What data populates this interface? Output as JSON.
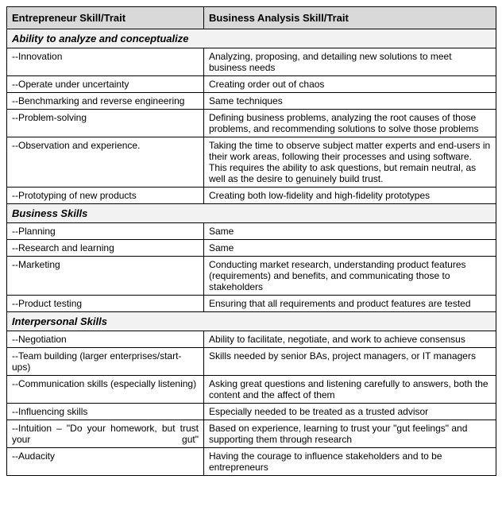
{
  "headers": {
    "col1": "Entrepreneur Skill/Trait",
    "col2": "Business Analysis Skill/Trait"
  },
  "sections": [
    {
      "title": "Ability to analyze and conceptualize",
      "rows": [
        {
          "left": "--Innovation",
          "right": "Analyzing, proposing, and detailing new solutions to meet business needs"
        },
        {
          "left": "--Operate under uncertainty",
          "right": "Creating order out of chaos"
        },
        {
          "left": "--Benchmarking and reverse engineering",
          "right": "Same techniques"
        },
        {
          "left": "--Problem-solving",
          "right": "Defining business problems, analyzing the root causes of those problems, and recommending solutions to solve those problems"
        },
        {
          "left": "--Observation and experience.",
          "right": "Taking the time to observe subject matter experts and end-users in their work areas, following their processes and using software. This requires the ability to ask questions, but remain neutral, as well as the desire to genuinely build trust."
        },
        {
          "left": "--Prototyping of new products",
          "right": "Creating both low-fidelity and high-fidelity prototypes"
        }
      ]
    },
    {
      "title": "Business Skills",
      "rows": [
        {
          "left": "--Planning",
          "right": "Same"
        },
        {
          "left": "--Research and learning",
          "right": "Same"
        },
        {
          "left": "--Marketing",
          "right": "Conducting market research, understanding product features (requirements) and benefits, and communicating those to stakeholders"
        },
        {
          "left": "--Product testing",
          "right": "Ensuring that all requirements and product features are tested"
        }
      ]
    },
    {
      "title": "Interpersonal Skills",
      "rows": [
        {
          "left": "--Negotiation",
          "right": "Ability to facilitate, negotiate, and work to achieve consensus"
        },
        {
          "left": "--Team building (larger enterprises/start-ups)",
          "right": "Skills needed by senior BAs, project managers, or IT managers"
        },
        {
          "left": "--Communication skills (especially listening)",
          "right": "Asking great questions and listening carefully to answers, both the content and the affect of them"
        },
        {
          "left": "--Influencing skills",
          "right": "Especially needed to be treated as a trusted advisor"
        },
        {
          "left": "--Intuition – \"Do your homework, but trust your gut\"",
          "right": "Based on experience, learning to trust your \"gut feelings\" and supporting them through research",
          "justify": true
        },
        {
          "left": "--Audacity",
          "right": "Having the courage to influence stakeholders and to be entrepreneurs"
        }
      ]
    }
  ]
}
